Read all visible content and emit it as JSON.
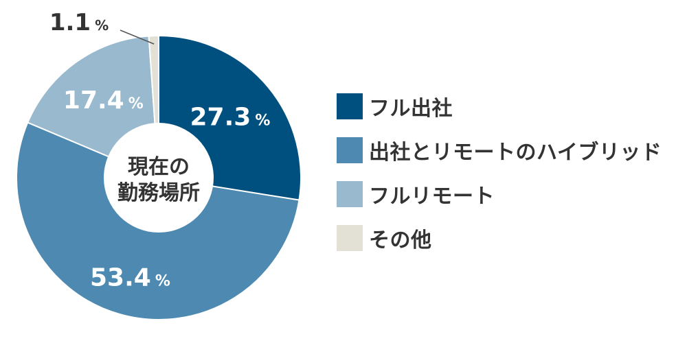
{
  "chart_data": {
    "type": "pie",
    "center_label": [
      "現在の",
      "勤務場所"
    ],
    "unit": "%",
    "slices": [
      {
        "label": "フル出社",
        "value": 27.3,
        "value_text": "27.3",
        "color": "#00507f"
      },
      {
        "label": "出社とリモートのハイブリッド",
        "value": 53.4,
        "value_text": "53.4",
        "color": "#4d89b0"
      },
      {
        "label": "フルリモート",
        "value": 17.4,
        "value_text": "17.4",
        "color": "#99b9cf"
      },
      {
        "label": "その他",
        "value": 1.1,
        "value_text": "1.1",
        "color": "#e3e0d5"
      }
    ],
    "legend_position": "right"
  }
}
